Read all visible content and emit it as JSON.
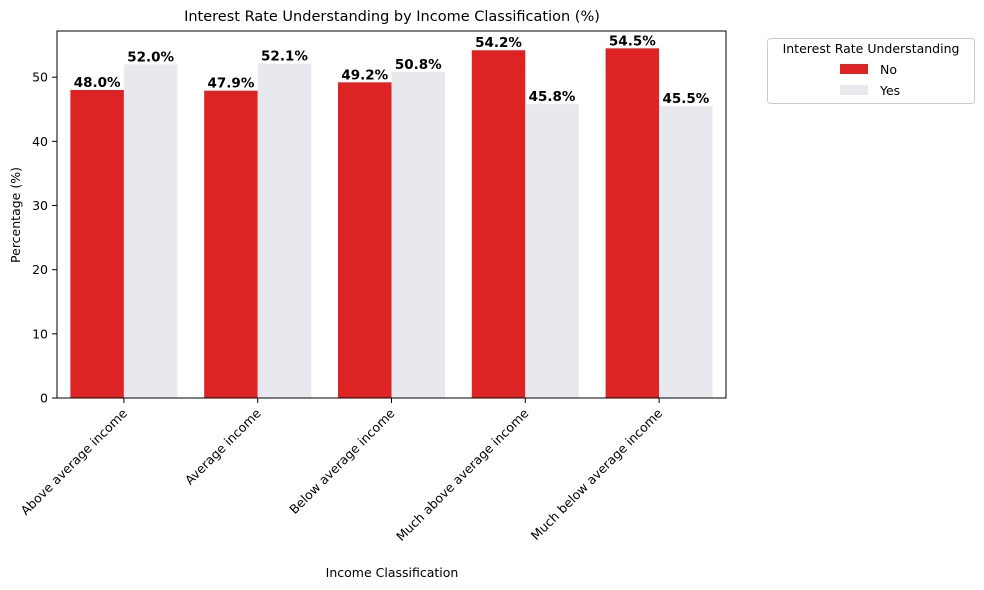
{
  "chart_data": {
    "type": "bar",
    "title": "Interest Rate Understanding by Income Classification (%)",
    "xlabel": "Income Classification",
    "ylabel": "Percentage (%)",
    "categories": [
      "Above average income",
      "Average income",
      "Below average income",
      "Much above average income",
      "Much below average income"
    ],
    "series": [
      {
        "name": "No",
        "values": [
          48.0,
          47.9,
          49.2,
          54.2,
          54.5
        ],
        "labels": [
          "48.0%",
          "47.9%",
          "49.2%",
          "54.2%",
          "54.5%"
        ],
        "color": "#dd2323"
      },
      {
        "name": "Yes",
        "values": [
          52.0,
          52.1,
          50.8,
          45.8,
          45.5
        ],
        "labels": [
          "52.0%",
          "52.1%",
          "50.8%",
          "45.8%",
          "45.5%"
        ],
        "color": "#e8e9ee"
      }
    ],
    "ylim": [
      0,
      57.2
    ],
    "yticks": [
      0,
      10,
      20,
      30,
      40,
      50
    ],
    "grid": false,
    "legend": {
      "title": "Interest Rate Understanding",
      "placement": "outside-top-right"
    }
  }
}
